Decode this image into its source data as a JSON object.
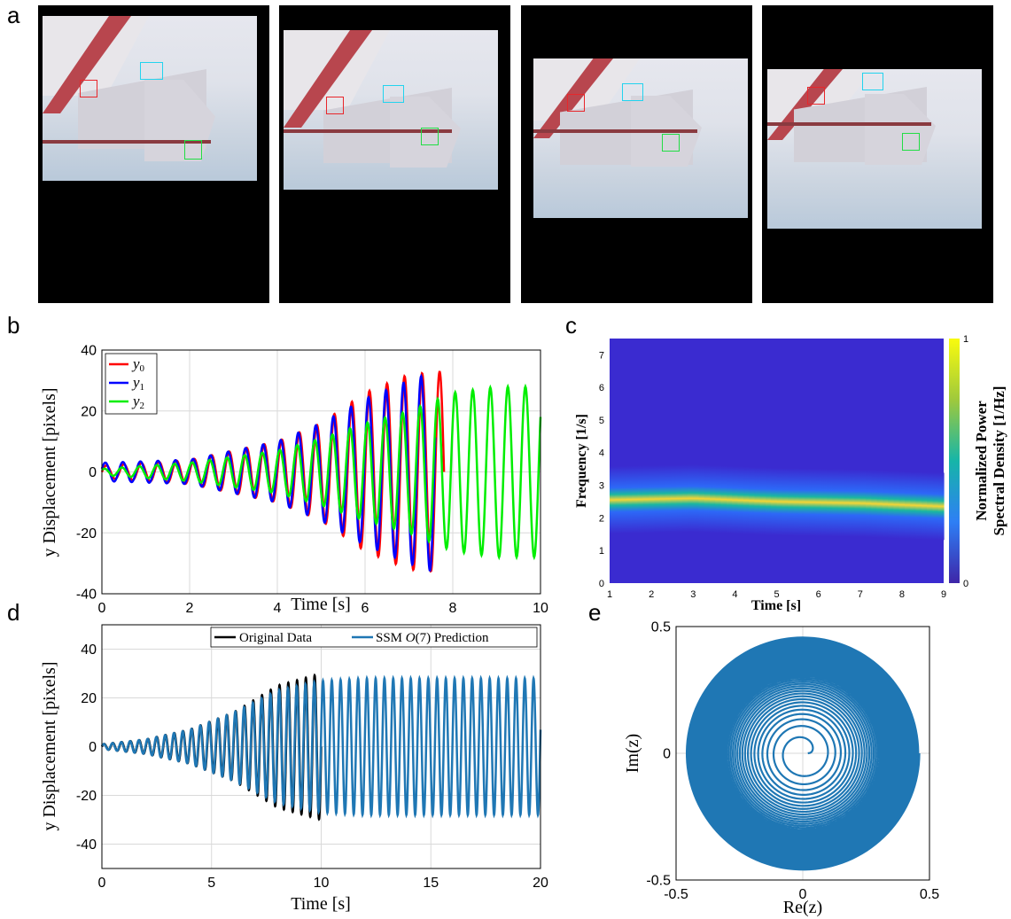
{
  "panels": {
    "a": "a",
    "b": "b",
    "c": "c",
    "d": "d",
    "e": "e"
  },
  "colors": {
    "y0": "#ff0000",
    "y1": "#0000ff",
    "y2": "#00ee00",
    "original": "#000000",
    "prediction": "#1f77b4",
    "tracker_red": "#e8262b",
    "tracker_cyan": "#22d3ee",
    "tracker_green": "#22dd44"
  },
  "chart_data": [
    {
      "id": "b",
      "type": "line",
      "xlabel": "Time [s]",
      "ylabel": "y Displacement [pixels]",
      "xlim": [
        0,
        10
      ],
      "ylim": [
        -40,
        40
      ],
      "xticks": [
        "0",
        "2",
        "4",
        "6",
        "8",
        "10"
      ],
      "yticks": [
        "-40",
        "-20",
        "0",
        "20",
        "40"
      ],
      "grid": true,
      "legend": "top-left",
      "series": [
        {
          "name": "y0",
          "color": "#ff0000",
          "t_end": 7.8,
          "freq": 2.5,
          "amp": [
            [
              0,
              2
            ],
            [
              2,
              4
            ],
            [
              4,
              10
            ],
            [
              5,
              16
            ],
            [
              6,
              26
            ],
            [
              7,
              32
            ],
            [
              7.8,
              33
            ]
          ]
        },
        {
          "name": "y1",
          "color": "#0000ff",
          "t_end": 7.6,
          "freq": 2.5,
          "amp": [
            [
              0,
              3
            ],
            [
              2,
              4
            ],
            [
              4,
              10
            ],
            [
              5,
              16
            ],
            [
              6,
              24
            ],
            [
              7,
              30
            ],
            [
              7.6,
              33
            ]
          ]
        },
        {
          "name": "y2",
          "color": "#00ee00",
          "t_end": 10,
          "freq": 2.5,
          "amp": [
            [
              0,
              1
            ],
            [
              2,
              3
            ],
            [
              4,
              7
            ],
            [
              5,
              11
            ],
            [
              6,
              16
            ],
            [
              7,
              20
            ],
            [
              8,
              26
            ],
            [
              9,
              28
            ],
            [
              10,
              28
            ]
          ]
        }
      ]
    },
    {
      "id": "c",
      "type": "heatmap",
      "xlabel": "Time [s]",
      "ylabel": "Frequency [1/s]",
      "xlim": [
        1,
        9
      ],
      "ylim": [
        0,
        7.5
      ],
      "xticks": [
        "1",
        "2",
        "3",
        "4",
        "5",
        "6",
        "7",
        "8",
        "9"
      ],
      "yticks": [
        "0",
        "1",
        "2",
        "3",
        "4",
        "5",
        "6",
        "7"
      ],
      "ridge_frequency": [
        [
          1,
          2.55
        ],
        [
          3,
          2.6
        ],
        [
          5,
          2.5
        ],
        [
          7,
          2.45
        ],
        [
          9,
          2.35
        ]
      ],
      "colorbar": {
        "label_line1": "Normalized Power",
        "label_line2": "Spectral Density [1/Hz]",
        "min": "0",
        "max": "1"
      }
    },
    {
      "id": "d",
      "type": "line",
      "xlabel": "Time [s]",
      "ylabel": "y Displacement [pixels]",
      "xlim": [
        0,
        20
      ],
      "ylim": [
        -50,
        50
      ],
      "xticks": [
        "0",
        "5",
        "10",
        "15",
        "20"
      ],
      "yticks": [
        "-40",
        "-20",
        "0",
        "20",
        "40"
      ],
      "grid": true,
      "legend": "top-right",
      "series": [
        {
          "name": "Original Data",
          "color": "#000000",
          "t_end": 10,
          "freq": 2.5,
          "amp": [
            [
              0,
              1
            ],
            [
              2,
              3
            ],
            [
              4,
              7
            ],
            [
              6,
              14
            ],
            [
              8,
              25
            ],
            [
              10,
              30
            ]
          ]
        },
        {
          "name": "SSM O(7) Prediction",
          "color": "#1f77b4",
          "t_end": 20,
          "freq": 2.5,
          "amp": [
            [
              0,
              1
            ],
            [
              2,
              3
            ],
            [
              4,
              7
            ],
            [
              6,
              14
            ],
            [
              8,
              23
            ],
            [
              10,
              27
            ],
            [
              12,
              28
            ],
            [
              20,
              28
            ]
          ]
        }
      ]
    },
    {
      "id": "e",
      "type": "line",
      "xlabel": "Re(z)",
      "ylabel": "Im(z)",
      "xlim": [
        -0.5,
        0.5
      ],
      "ylim": [
        -0.5,
        0.5
      ],
      "xticks": [
        "-0.5",
        "0",
        "0.5"
      ],
      "yticks": [
        "-0.5",
        "0",
        "0.5"
      ],
      "grid": true,
      "spiral": {
        "r_start": 0.02,
        "r_end": 0.46,
        "turns": 45,
        "color": "#1f77b4"
      }
    }
  ],
  "legend_b": [
    "y",
    "y",
    "y"
  ],
  "legend_b_sub": [
    "0",
    "1",
    "2"
  ],
  "legend_d": [
    "Original Data",
    "SSM ",
    "(7) Prediction"
  ],
  "legend_d_cal": "O"
}
